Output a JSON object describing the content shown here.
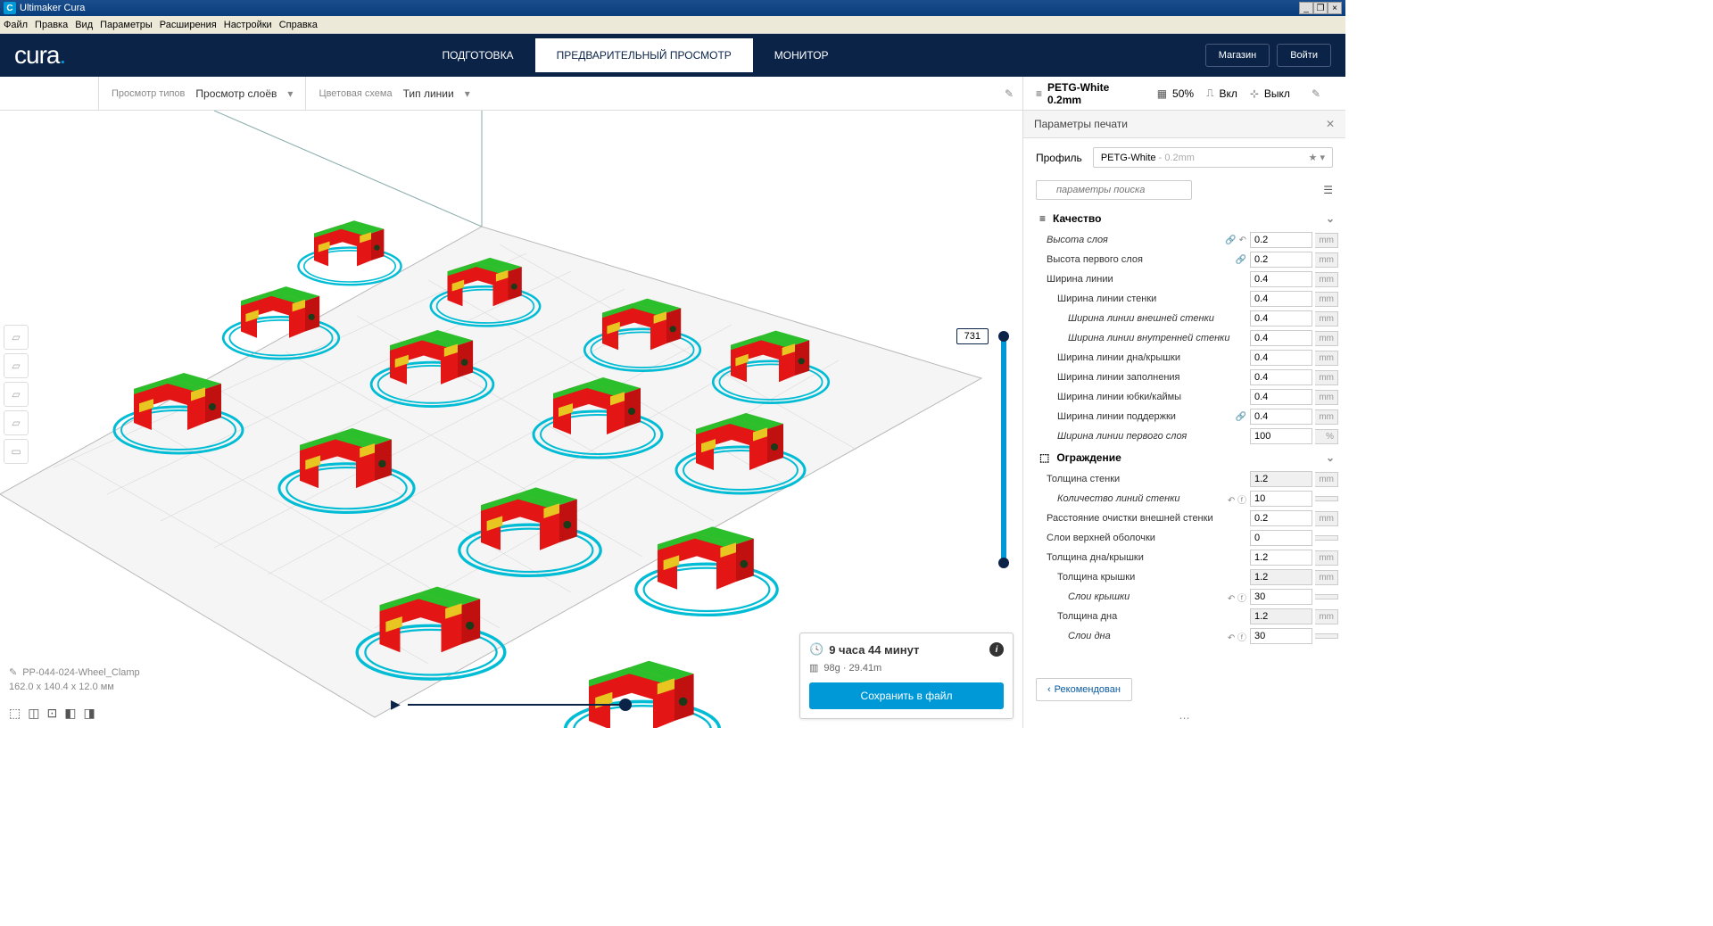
{
  "titlebar": {
    "app": "Ultimaker Cura"
  },
  "menu": [
    "Файл",
    "Правка",
    "Вид",
    "Параметры",
    "Расширения",
    "Настройки",
    "Справка"
  ],
  "header": {
    "logo_text": "cura",
    "tabs": [
      "ПОДГОТОВКА",
      "ПРЕДВАРИТЕЛЬНЫЙ ПРОСМОТР",
      "МОНИТОР"
    ],
    "active_tab": 1,
    "shop": "Магазин",
    "signin": "Войти"
  },
  "toolbar": {
    "view_label": "Просмотр типов",
    "view_value": "Просмотр слоёв",
    "color_label": "Цветовая схема",
    "color_value": "Тип линии",
    "material": "PETG-White 0.2mm",
    "infill": "50%",
    "support": "Вкл",
    "adhesion": "Выкл"
  },
  "panel": {
    "title": "Параметры печати",
    "profile_label": "Профиль",
    "profile_value": "PETG-White",
    "profile_dim": "- 0.2mm",
    "search_placeholder": "параметры поиска",
    "sections": {
      "quality": "Качество",
      "walls": "Ограждение"
    },
    "settings": [
      {
        "k": "quality_head"
      },
      {
        "lbl": "Высота слоя",
        "v": "0.2",
        "u": "mm",
        "i": 1,
        "ico": "link,undo",
        "italic": true
      },
      {
        "lbl": "Высота первого слоя",
        "v": "0.2",
        "u": "mm",
        "i": 1,
        "ico": "link"
      },
      {
        "lbl": "Ширина линии",
        "v": "0.4",
        "u": "mm",
        "i": 1
      },
      {
        "lbl": "Ширина линии стенки",
        "v": "0.4",
        "u": "mm",
        "i": 2
      },
      {
        "lbl": "Ширина линии внешней стенки",
        "v": "0.4",
        "u": "mm",
        "i": 3
      },
      {
        "lbl": "Ширина линии внутренней стенки",
        "v": "0.4",
        "u": "mm",
        "i": 3
      },
      {
        "lbl": "Ширина линии дна/крышки",
        "v": "0.4",
        "u": "mm",
        "i": 2
      },
      {
        "lbl": "Ширина линии заполнения",
        "v": "0.4",
        "u": "mm",
        "i": 2
      },
      {
        "lbl": "Ширина линии юбки/каймы",
        "v": "0.4",
        "u": "mm",
        "i": 2
      },
      {
        "lbl": "Ширина линии поддержки",
        "v": "0.4",
        "u": "mm",
        "i": 2,
        "ico": "link"
      },
      {
        "lbl": "Ширина линии первого слоя",
        "v": "100",
        "u": "%",
        "i": 2,
        "italic": true
      },
      {
        "k": "walls_head"
      },
      {
        "lbl": "Толщина стенки",
        "v": "1.2",
        "u": "mm",
        "i": 1,
        "ro": true
      },
      {
        "lbl": "Количество линий стенки",
        "v": "10",
        "u": "",
        "i": 2,
        "ico": "undo,fx",
        "italic": true
      },
      {
        "lbl": "Расстояние очистки внешней стенки",
        "v": "0.2",
        "u": "mm",
        "i": 1
      },
      {
        "lbl": "Слои верхней оболочки",
        "v": "0",
        "u": "",
        "i": 1
      },
      {
        "lbl": "Толщина дна/крышки",
        "v": "1.2",
        "u": "mm",
        "i": 1
      },
      {
        "lbl": "Толщина крышки",
        "v": "1.2",
        "u": "mm",
        "i": 2,
        "ro": true
      },
      {
        "lbl": "Слои крышки",
        "v": "30",
        "u": "",
        "i": 3,
        "ico": "undo,fx",
        "italic": true
      },
      {
        "lbl": "Толщина дна",
        "v": "1.2",
        "u": "mm",
        "i": 2,
        "ro": true
      },
      {
        "lbl": "Слои дна",
        "v": "30",
        "u": "",
        "i": 3,
        "ico": "undo,fx",
        "italic": true
      }
    ],
    "recommend": "Рекомендован"
  },
  "layer": {
    "value": "731"
  },
  "model": {
    "name": "PP-044-024-Wheel_Clamp",
    "dims": "162.0 x 140.4 x 12.0 мм"
  },
  "output": {
    "time": "9 часа 44 минут",
    "material": "98g · 29.41m",
    "save": "Сохранить в файл"
  },
  "colors": {
    "shell": "#e31515",
    "top": "#2bbf2b",
    "infill": "#e8c520",
    "skirt": "#00bcd4",
    "plate": "#e8e8e8",
    "grid": "#c8c8c8"
  }
}
